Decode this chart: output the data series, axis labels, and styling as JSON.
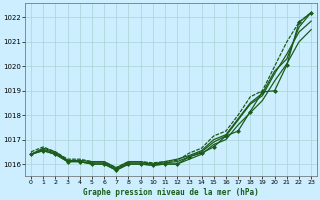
{
  "title": "Graphe pression niveau de la mer (hPa)",
  "bg_color": "#cceeff",
  "grid_color": "#aad4d4",
  "line_color": "#1a5c1a",
  "x_ticks": [
    0,
    1,
    2,
    3,
    4,
    5,
    6,
    7,
    8,
    9,
    10,
    11,
    12,
    13,
    14,
    15,
    16,
    17,
    18,
    19,
    20,
    21,
    22,
    23
  ],
  "ylim": [
    1015.5,
    1022.6
  ],
  "yticks": [
    1016,
    1017,
    1018,
    1019,
    1020,
    1021,
    1022
  ],
  "series": {
    "line1": [
      1016.4,
      1016.65,
      1016.5,
      1016.15,
      1016.15,
      1016.1,
      1016.1,
      1015.85,
      1016.1,
      1016.1,
      1016.0,
      1016.1,
      1016.2,
      1016.35,
      1016.55,
      1017.0,
      1017.2,
      1017.85,
      1018.5,
      1018.9,
      1019.8,
      1020.3,
      1021.6,
      1022.2
    ],
    "line2": [
      1016.4,
      1016.55,
      1016.4,
      1016.1,
      1016.1,
      1016.0,
      1016.0,
      1015.75,
      1016.0,
      1016.0,
      1015.95,
      1016.0,
      1016.0,
      1016.2,
      1016.4,
      1016.8,
      1017.0,
      1017.6,
      1018.1,
      1018.6,
      1019.4,
      1020.1,
      1021.0,
      1021.5
    ],
    "line3": [
      1016.4,
      1016.6,
      1016.45,
      1016.15,
      1016.1,
      1016.05,
      1016.05,
      1015.8,
      1016.05,
      1016.05,
      1016.0,
      1016.05,
      1016.1,
      1016.3,
      1016.5,
      1016.9,
      1017.15,
      1017.8,
      1018.45,
      1018.8,
      1019.7,
      1020.5,
      1021.4,
      1021.85
    ],
    "dotted": [
      1016.5,
      1016.7,
      1016.5,
      1016.2,
      1016.2,
      1016.1,
      1016.1,
      1015.85,
      1016.1,
      1016.1,
      1016.05,
      1016.1,
      1016.15,
      1016.45,
      1016.65,
      1017.15,
      1017.35,
      1018.0,
      1018.75,
      1019.0,
      1020.0,
      1021.0,
      1021.8,
      1022.2
    ],
    "markers": [
      1016.4,
      1016.55,
      1016.4,
      1016.1,
      1016.1,
      1016.0,
      1016.0,
      1015.75,
      1016.0,
      1016.0,
      1015.95,
      1016.0,
      1016.0,
      1016.3,
      1016.45,
      1016.7,
      1017.15,
      1017.35,
      1018.15,
      1018.95,
      1019.0,
      1020.05,
      1021.8,
      1022.2
    ]
  }
}
